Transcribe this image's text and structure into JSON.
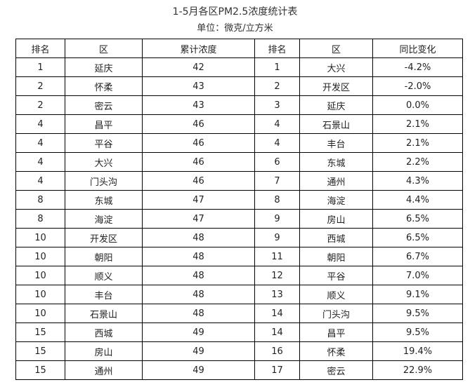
{
  "title": "1-5月各区PM2.5浓度统计表",
  "unit": "单位：微克/立方米",
  "headers": [
    "排名",
    "区",
    "累计浓度",
    "排名",
    "区",
    "同比变化"
  ],
  "rows": [
    [
      "1",
      "延庆",
      "42",
      "1",
      "大兴",
      "-4.2%"
    ],
    [
      "2",
      "怀柔",
      "43",
      "2",
      "开发区",
      "-2.0%"
    ],
    [
      "2",
      "密云",
      "43",
      "3",
      "延庆",
      "0.0%"
    ],
    [
      "4",
      "昌平",
      "46",
      "4",
      "石景山",
      "2.1%"
    ],
    [
      "4",
      "平谷",
      "46",
      "4",
      "丰台",
      "2.1%"
    ],
    [
      "4",
      "大兴",
      "46",
      "6",
      "东城",
      "2.2%"
    ],
    [
      "4",
      "门头沟",
      "46",
      "7",
      "通州",
      "4.3%"
    ],
    [
      "8",
      "东城",
      "47",
      "8",
      "海淀",
      "4.4%"
    ],
    [
      "8",
      "海淀",
      "47",
      "9",
      "房山",
      "6.5%"
    ],
    [
      "10",
      "开发区",
      "48",
      "9",
      "西城",
      "6.5%"
    ],
    [
      "10",
      "朝阳",
      "48",
      "11",
      "朝阳",
      "6.7%"
    ],
    [
      "10",
      "顺义",
      "48",
      "12",
      "平谷",
      "7.0%"
    ],
    [
      "10",
      "丰台",
      "48",
      "13",
      "顺义",
      "9.1%"
    ],
    [
      "10",
      "石景山",
      "48",
      "14",
      "门头沟",
      "9.5%"
    ],
    [
      "15",
      "西城",
      "49",
      "14",
      "昌平",
      "9.5%"
    ],
    [
      "15",
      "房山",
      "49",
      "16",
      "怀柔",
      "19.4%"
    ],
    [
      "15",
      "通州",
      "49",
      "17",
      "密云",
      "22.9%"
    ]
  ]
}
